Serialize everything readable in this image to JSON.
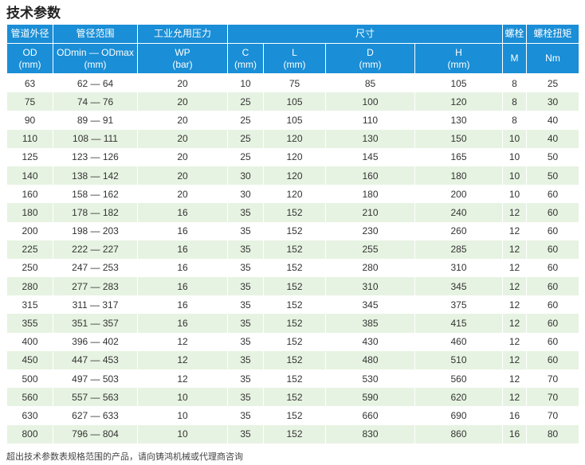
{
  "title": "技术参数",
  "table": {
    "header_top": [
      "管道外径",
      "管径范围",
      "工业允用压力",
      "尺寸",
      "螺栓",
      "螺栓扭矩"
    ],
    "header_sub": [
      [
        "OD",
        "(mm)"
      ],
      [
        "ODmin — ODmax",
        "(mm)"
      ],
      [
        "WP",
        "(bar)"
      ],
      [
        "C",
        "(mm)"
      ],
      [
        "L",
        "(mm)"
      ],
      [
        "D",
        "(mm)"
      ],
      [
        "H",
        "(mm)"
      ],
      [
        "M"
      ],
      [
        "Nm"
      ]
    ],
    "rows": [
      [
        63,
        "62 — 64",
        20,
        10,
        75,
        85,
        105,
        8,
        25
      ],
      [
        75,
        "74 — 76",
        20,
        25,
        105,
        100,
        120,
        8,
        30
      ],
      [
        90,
        "89 — 91",
        20,
        25,
        105,
        110,
        130,
        8,
        40
      ],
      [
        110,
        "108 — 111",
        20,
        25,
        120,
        130,
        150,
        10,
        40
      ],
      [
        125,
        "123 — 126",
        20,
        25,
        120,
        145,
        165,
        10,
        50
      ],
      [
        140,
        "138 — 142",
        20,
        30,
        120,
        160,
        180,
        10,
        50
      ],
      [
        160,
        "158 — 162",
        20,
        30,
        120,
        180,
        200,
        10,
        60
      ],
      [
        180,
        "178 — 182",
        16,
        35,
        152,
        210,
        240,
        12,
        60
      ],
      [
        200,
        "198 — 203",
        16,
        35,
        152,
        230,
        260,
        12,
        60
      ],
      [
        225,
        "222 — 227",
        16,
        35,
        152,
        255,
        285,
        12,
        60
      ],
      [
        250,
        "247 — 253",
        16,
        35,
        152,
        280,
        310,
        12,
        60
      ],
      [
        280,
        "277 — 283",
        16,
        35,
        152,
        310,
        345,
        12,
        60
      ],
      [
        315,
        "311 — 317",
        16,
        35,
        152,
        345,
        375,
        12,
        60
      ],
      [
        355,
        "351 — 357",
        16,
        35,
        152,
        385,
        415,
        12,
        60
      ],
      [
        400,
        "396 — 402",
        12,
        35,
        152,
        430,
        460,
        12,
        60
      ],
      [
        450,
        "447 — 453",
        12,
        35,
        152,
        480,
        510,
        12,
        60
      ],
      [
        500,
        "497 — 503",
        12,
        35,
        152,
        530,
        560,
        12,
        70
      ],
      [
        560,
        "557 — 563",
        10,
        35,
        152,
        590,
        620,
        12,
        70
      ],
      [
        630,
        "627 — 633",
        10,
        35,
        152,
        660,
        690,
        16,
        70
      ],
      [
        800,
        "796 — 804",
        10,
        35,
        152,
        830,
        860,
        16,
        80
      ]
    ]
  },
  "footnote": "超出技术参数表规格范围的产品，请向铸鸿机械或代理商咨询"
}
